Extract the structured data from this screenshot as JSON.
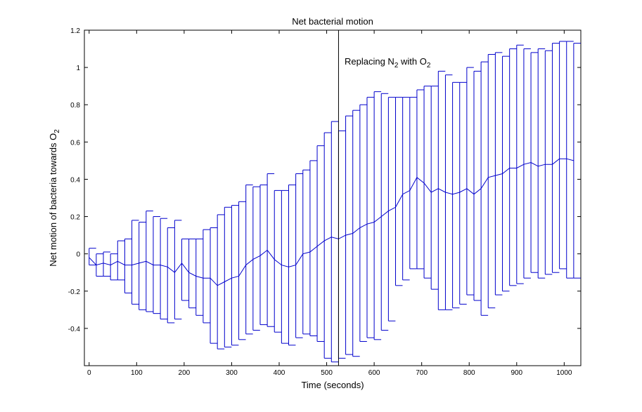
{
  "chart_data": {
    "type": "line",
    "title": "Net bacterial motion",
    "xlabel": "Time (seconds)",
    "ylabel": {
      "main": "Net motion of bacteria towards O",
      "sub": "2"
    },
    "xlim": [
      -10,
      1035
    ],
    "ylim": [
      -0.6,
      1.2
    ],
    "xticks": [
      0,
      100,
      200,
      300,
      400,
      500,
      600,
      700,
      800,
      900,
      1000
    ],
    "yticks": [
      -0.4,
      -0.2,
      0,
      0.2,
      0.4,
      0.6,
      0.8,
      1,
      1.2
    ],
    "ytick_labels": [
      "-0.4",
      "-0.2",
      "0",
      "0.2",
      "0.4",
      "0.6",
      "0.8",
      "1",
      "1.2"
    ],
    "grid": false,
    "series_color": "#0000cc",
    "marker_color": "#000000",
    "annotation": {
      "x": 525,
      "text_parts": [
        {
          "text": "Replacing N",
          "sub": false
        },
        {
          "text": "2",
          "sub": true
        },
        {
          "text": " with O",
          "sub": false
        },
        {
          "text": "2",
          "sub": true
        }
      ]
    },
    "x": [
      0,
      15,
      30,
      45,
      60,
      75,
      90,
      105,
      120,
      135,
      150,
      165,
      180,
      195,
      210,
      225,
      240,
      255,
      270,
      285,
      300,
      315,
      330,
      345,
      360,
      375,
      390,
      405,
      420,
      435,
      450,
      465,
      480,
      495,
      510,
      525,
      540,
      555,
      570,
      585,
      600,
      615,
      630,
      645,
      660,
      675,
      690,
      705,
      720,
      735,
      750,
      765,
      780,
      795,
      810,
      825,
      840,
      855,
      870,
      885,
      900,
      915,
      930,
      945,
      960,
      975,
      990,
      1005,
      1020
    ],
    "mean": [
      -0.02,
      -0.06,
      -0.05,
      -0.06,
      -0.04,
      -0.06,
      -0.06,
      -0.05,
      -0.04,
      -0.06,
      -0.06,
      -0.07,
      -0.1,
      -0.05,
      -0.1,
      -0.12,
      -0.13,
      -0.13,
      -0.17,
      -0.15,
      -0.13,
      -0.12,
      -0.06,
      -0.03,
      -0.01,
      0.02,
      -0.03,
      -0.06,
      -0.07,
      -0.06,
      0.0,
      0.01,
      0.04,
      0.07,
      0.09,
      0.08,
      0.1,
      0.11,
      0.14,
      0.16,
      0.17,
      0.2,
      0.23,
      0.25,
      0.32,
      0.34,
      0.41,
      0.38,
      0.33,
      0.35,
      0.33,
      0.32,
      0.33,
      0.35,
      0.32,
      0.35,
      0.41,
      0.42,
      0.43,
      0.46,
      0.46,
      0.48,
      0.49,
      0.47,
      0.48,
      0.48,
      0.51,
      0.51,
      0.5
    ],
    "err_high": [
      0.03,
      0.0,
      0.01,
      0.0,
      0.07,
      0.08,
      0.18,
      0.17,
      0.23,
      0.2,
      0.19,
      0.14,
      0.18,
      0.08,
      0.08,
      0.08,
      0.13,
      0.14,
      0.21,
      0.25,
      0.26,
      0.28,
      0.37,
      0.36,
      0.37,
      0.43,
      0.34,
      0.34,
      0.37,
      0.43,
      0.45,
      0.5,
      0.58,
      0.65,
      0.71,
      0.66,
      0.74,
      0.77,
      0.8,
      0.84,
      0.87,
      0.86,
      0.84,
      0.84,
      0.84,
      0.84,
      0.88,
      0.9,
      0.9,
      0.98,
      0.96,
      0.92,
      0.92,
      1.0,
      0.98,
      1.03,
      1.07,
      1.08,
      1.06,
      1.1,
      1.12,
      1.1,
      1.08,
      1.1,
      1.09,
      1.13,
      1.14,
      1.14,
      1.13
    ],
    "err_low": [
      -0.06,
      -0.12,
      -0.12,
      -0.14,
      -0.14,
      -0.21,
      -0.27,
      -0.3,
      -0.31,
      -0.32,
      -0.35,
      -0.37,
      -0.35,
      -0.25,
      -0.29,
      -0.33,
      -0.37,
      -0.48,
      -0.51,
      -0.5,
      -0.49,
      -0.46,
      -0.43,
      -0.41,
      -0.38,
      -0.39,
      -0.42,
      -0.48,
      -0.49,
      -0.45,
      -0.43,
      -0.44,
      -0.47,
      -0.56,
      -0.58,
      -0.56,
      -0.54,
      -0.55,
      -0.47,
      -0.45,
      -0.46,
      -0.41,
      -0.36,
      -0.17,
      -0.14,
      -0.08,
      -0.08,
      -0.13,
      -0.19,
      -0.3,
      -0.3,
      -0.29,
      -0.27,
      -0.22,
      -0.25,
      -0.33,
      -0.29,
      -0.22,
      -0.2,
      -0.17,
      -0.16,
      -0.13,
      -0.1,
      -0.13,
      -0.11,
      -0.1,
      -0.08,
      -0.13,
      -0.13
    ]
  }
}
